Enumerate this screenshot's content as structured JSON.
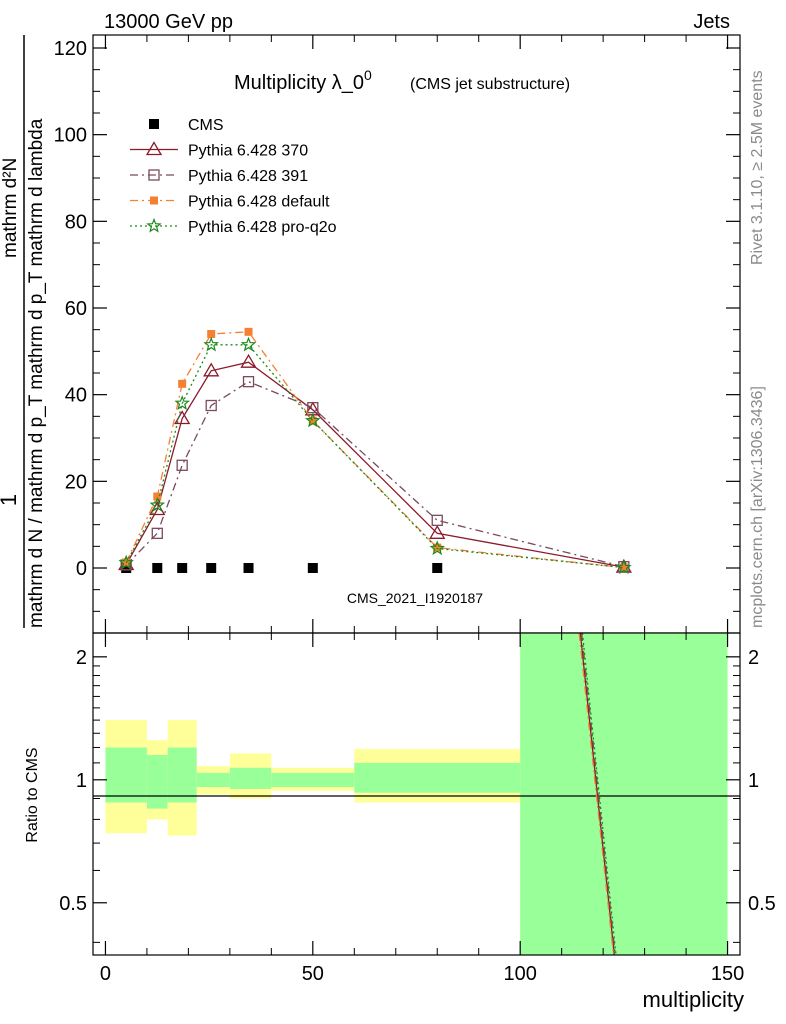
{
  "header": {
    "left": "13000 GeV pp",
    "right": "Jets"
  },
  "side_labels": {
    "top": "Rivet 3.1.10, ≥ 2.5M events",
    "bottom": "mcplots.cern.ch [arXiv:1306.3436]"
  },
  "watermark": "CMS_2021_I1920187",
  "chart_data": [
    {
      "type": "line",
      "title": "Multiplicity λ_0",
      "title_sup": "0",
      "subtitle": "(CMS jet substructure)",
      "ylabel_num": "1",
      "ylabel_den": "mathrm d N / mathrm d p_T mathrm d p_T mathrm d lambda",
      "ylabel_top": "mathrm d²N",
      "xlim": [
        -3,
        153
      ],
      "ylim": [
        -15,
        123
      ],
      "yticks": [
        0,
        20,
        40,
        60,
        80,
        100,
        120
      ],
      "ytick_labels": [
        "0",
        "20",
        "40",
        "60",
        "80",
        "100",
        "120"
      ],
      "legend_position": "top-left",
      "x": [
        5,
        12.5,
        18.5,
        25.5,
        34.5,
        50,
        80,
        125
      ],
      "series": [
        {
          "name": "CMS",
          "color": "#000000",
          "marker": "square",
          "values": [
            0,
            0,
            0,
            0,
            0,
            0,
            0,
            0
          ]
        },
        {
          "name": "Pythia 6.428 370",
          "color": "#8b1a2b",
          "marker": "triangle-open",
          "dash": "solid",
          "values": [
            0.8,
            13.5,
            34.5,
            45.5,
            47.5,
            36.5,
            8,
            0.2
          ]
        },
        {
          "name": "Pythia 6.428 391",
          "color": "#7a4a5f",
          "marker": "square-open",
          "dash": "dashdot",
          "values": [
            0.7,
            8,
            23.7,
            37.5,
            43,
            37,
            11,
            0.3
          ]
        },
        {
          "name": "Pythia 6.428 default",
          "color": "#f58033",
          "marker": "square-filled",
          "dash": "dashdot",
          "values": [
            1.3,
            16.5,
            42.5,
            54,
            54.5,
            34,
            4.7,
            0.1
          ]
        },
        {
          "name": "Pythia 6.428 pro-q2o",
          "color": "#1a8a1a",
          "marker": "star",
          "dash": "dotted",
          "values": [
            1.2,
            14.5,
            38,
            51.5,
            51.5,
            34,
            4.5,
            0.1
          ]
        }
      ]
    },
    {
      "type": "area",
      "ylabel": "Ratio to CMS",
      "xlabel": "multiplicity",
      "xlim": [
        -3,
        153
      ],
      "ylim": [
        0.3725,
        2.2875
      ],
      "xticks": [
        0,
        50,
        100,
        150
      ],
      "xtick_labels": [
        "0",
        "50",
        "100",
        "150"
      ],
      "yticks": [
        0.5,
        1,
        2
      ],
      "ytick_labels": [
        "0.5",
        "1",
        "2"
      ],
      "colors": {
        "band_outer": "#ffff99",
        "band_inner": "#99ff99"
      },
      "bins": [
        {
          "x0": 0,
          "x1": 10,
          "outer": [
            0.74,
            1.4
          ],
          "inner": [
            0.88,
            1.2
          ]
        },
        {
          "x0": 10,
          "x1": 15,
          "outer": [
            0.8,
            1.25
          ],
          "inner": [
            0.85,
            1.15
          ]
        },
        {
          "x0": 15,
          "x1": 22,
          "outer": [
            0.73,
            1.4
          ],
          "inner": [
            0.88,
            1.2
          ]
        },
        {
          "x0": 22,
          "x1": 30,
          "outer": [
            0.92,
            1.08
          ],
          "inner": [
            0.96,
            1.04
          ]
        },
        {
          "x0": 30,
          "x1": 40,
          "outer": [
            0.9,
            1.16
          ],
          "inner": [
            0.95,
            1.07
          ]
        },
        {
          "x0": 40,
          "x1": 60,
          "outer": [
            0.94,
            1.07
          ],
          "inner": [
            0.96,
            1.04
          ]
        },
        {
          "x0": 60,
          "x1": 100,
          "outer": [
            0.88,
            1.19
          ],
          "inner": [
            0.93,
            1.1
          ]
        },
        {
          "x0": 100,
          "x1": 150,
          "outer": [
            0.3725,
            2.2875
          ],
          "inner": [
            0.3725,
            2.2875
          ]
        }
      ],
      "ratio_lines": [
        {
          "name": "Pythia 6.428 370",
          "color": "#8b1a2b",
          "dash": "solid",
          "x": [
            114.5,
            122.7
          ],
          "values": [
            2.2875,
            0.3725
          ]
        },
        {
          "name": "Pythia 6.428 391",
          "color": "#7a4a5f",
          "dash": "dashdot",
          "x": [
            114.8,
            122.9
          ],
          "values": [
            2.2875,
            0.3725
          ]
        },
        {
          "name": "Pythia 6.428 default",
          "color": "#f58033",
          "dash": "dashdot",
          "x": [
            114.2,
            122.5
          ],
          "values": [
            2.2875,
            0.3725
          ]
        },
        {
          "name": "Pythia 6.428 pro-q2o",
          "color": "#1a8a1a",
          "dash": "dotted",
          "x": [
            115.0,
            123.1
          ],
          "values": [
            2.2875,
            0.3725
          ]
        }
      ]
    }
  ]
}
